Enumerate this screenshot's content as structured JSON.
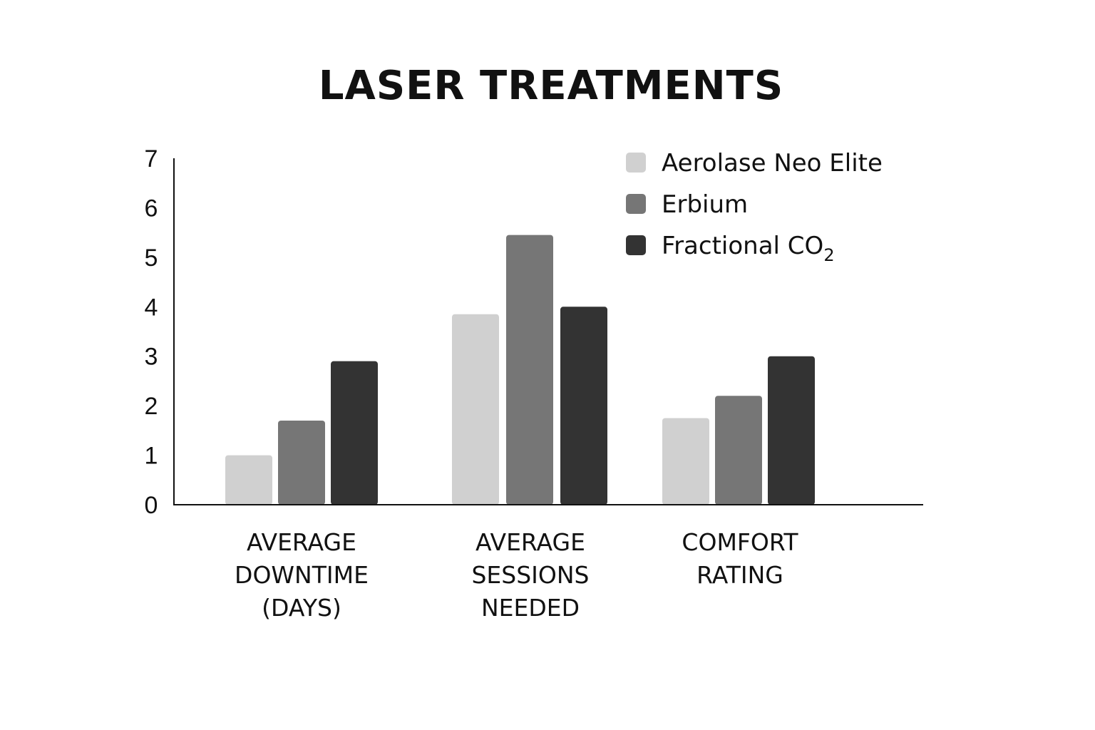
{
  "chart_data": {
    "type": "bar",
    "title": "LASER TREATMENTS",
    "categories": [
      [
        "AVERAGE",
        "DOWNTIME",
        "(DAYS)"
      ],
      [
        "AVERAGE",
        "SESSIONS",
        "NEEDED"
      ],
      [
        "COMFORT",
        "RATING"
      ]
    ],
    "series": [
      {
        "name": "Aerolase Neo Elite",
        "color": "#d0d0d0",
        "values": [
          1.0,
          3.85,
          1.75
        ]
      },
      {
        "name": "Erbium",
        "color": "#767676",
        "values": [
          1.7,
          5.45,
          2.2
        ]
      },
      {
        "name": "Fractional CO",
        "name_subscript": "2",
        "color": "#333333",
        "values": [
          2.9,
          4.0,
          3.0
        ]
      }
    ],
    "yticks": [
      "0",
      "1",
      "2",
      "3",
      "4",
      "5",
      "6",
      "7"
    ],
    "ylim": [
      0,
      7
    ],
    "grid": false,
    "legend_position": "top-right"
  }
}
